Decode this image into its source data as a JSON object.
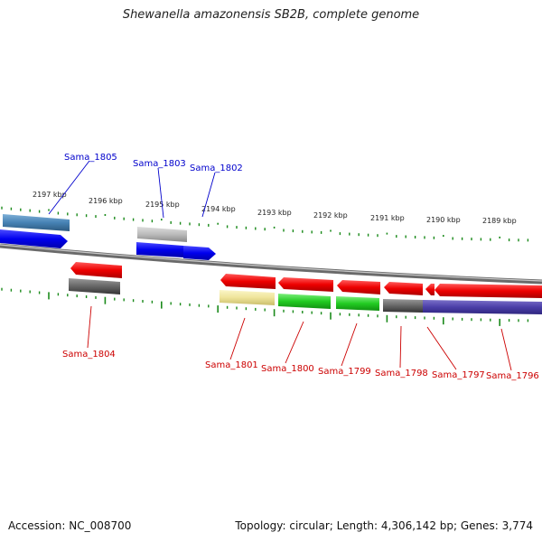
{
  "title": "Shewanella amazonensis SB2B, complete genome",
  "footer": {
    "accession": "Accession: NC_008700",
    "summary": "Topology: circular; Length: 4,306,142 bp; Genes: 3,774"
  },
  "colors": {
    "backbone": "#888888",
    "tick": "#1a8a1a",
    "label_forward": "#0000cc",
    "label_reverse": "#cc0000"
  },
  "ticks": [
    {
      "label": "2197 kbp"
    },
    {
      "label": "2196 kbp"
    },
    {
      "label": "2195 kbp"
    },
    {
      "label": "2194 kbp"
    },
    {
      "label": "2193 kbp"
    },
    {
      "label": "2192 kbp"
    },
    {
      "label": "2191 kbp"
    },
    {
      "label": "2190 kbp"
    },
    {
      "label": "2189 kbp"
    }
  ],
  "genes": [
    {
      "name": "Sama_1805",
      "strand": "forward"
    },
    {
      "name": "Sama_1803",
      "strand": "forward"
    },
    {
      "name": "Sama_1802",
      "strand": "forward"
    },
    {
      "name": "Sama_1804",
      "strand": "reverse"
    },
    {
      "name": "Sama_1801",
      "strand": "reverse"
    },
    {
      "name": "Sama_1800",
      "strand": "reverse"
    },
    {
      "name": "Sama_1799",
      "strand": "reverse"
    },
    {
      "name": "Sama_1798",
      "strand": "reverse"
    },
    {
      "name": "Sama_1797",
      "strand": "reverse"
    },
    {
      "name": "Sama_1796",
      "strand": "reverse"
    }
  ]
}
